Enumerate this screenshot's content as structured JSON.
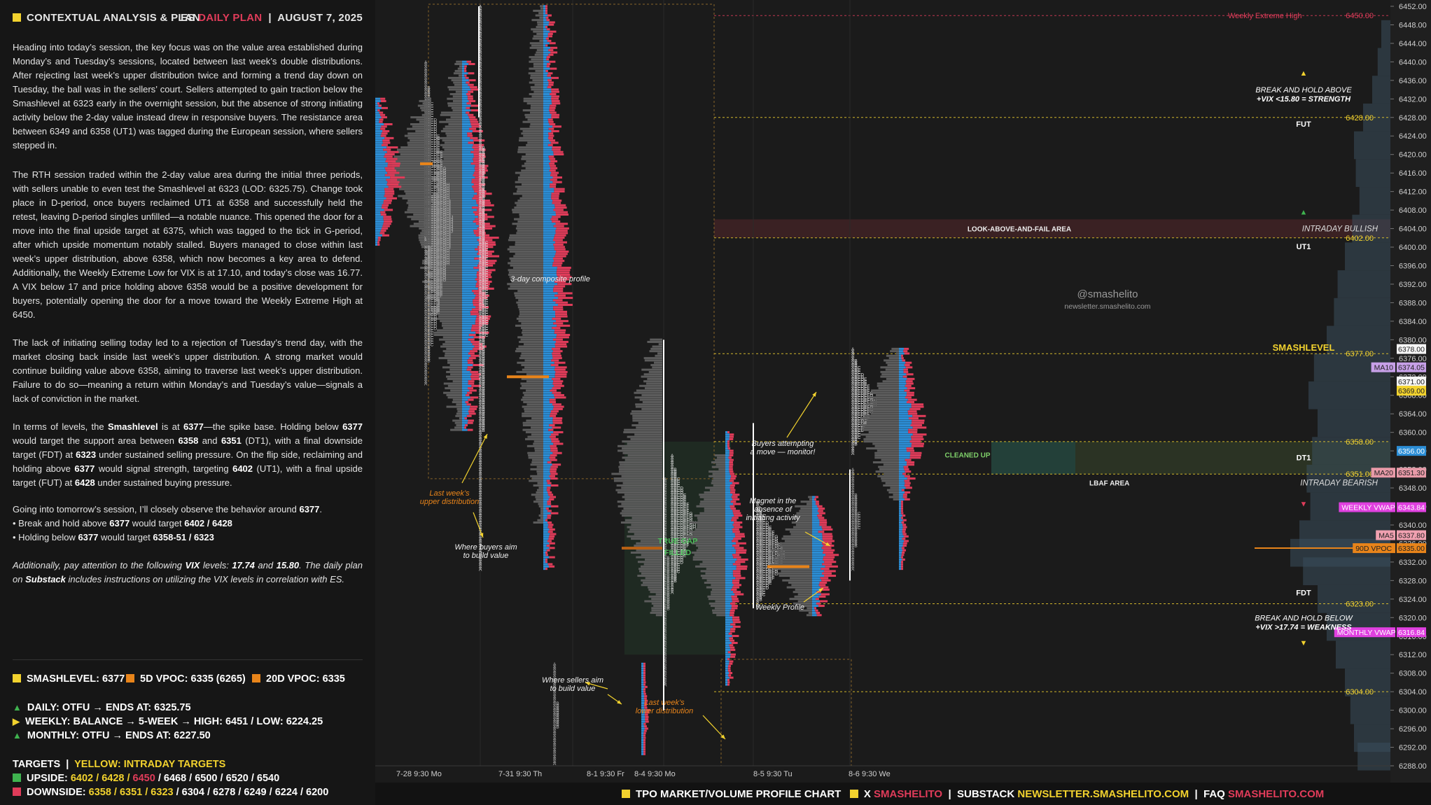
{
  "header": {
    "title": "CONTEXTUAL ANALYSIS & PLAN",
    "instrument": "ES",
    "plan": "DAILY PLAN",
    "date": "AUGUST 7, 2025"
  },
  "paragraphs": [
    "Heading into today’s session, the key focus was on the value area established during Monday’s and Tuesday’s sessions, located between last week’s double distributions. After rejecting last week’s upper distribution twice and forming a trend day down on Tuesday, the ball was in the sellers’ court. Sellers attempted to gain traction below the Smashlevel at 6323 early in the overnight session, but the absence of strong initiating activity below the 2-day value instead drew in responsive buyers. The resistance area between 6349 and 6358 (UT1) was tagged during the European session, where sellers stepped in.",
    "The RTH session traded within the 2-day value area during the initial three periods, with sellers unable to even test the Smashlevel at 6323 (LOD: 6325.75). Change took place in D-period, once buyers reclaimed UT1 at 6358 and successfully held the retest, leaving D-period singles unfilled—a notable nuance. This opened the door for a move into the final upside target at 6375, which was tagged to the tick in G-period, after which upside momentum notably stalled. Buyers managed to close within last week’s upper distribution, above 6358, which now becomes a key area to defend. Additionally, the Weekly Extreme Low for VIX is at 17.10, and today’s close was 16.77. A VIX below 17 and price holding above 6358 would be a positive development for buyers, potentially opening the door for a move toward the Weekly Extreme High at 6450.",
    "The lack of initiating selling today led to a rejection of Tuesday’s trend day, with the market closing back inside last week’s upper distribution. A strong market would continue building value above 6358, aiming to traverse last week’s upper distribution. Failure to do so—meaning a return within Monday’s and Tuesday’s value—signals a lack of conviction in the market.",
    "In terms of levels, the <b>Smashlevel</b> is at <b>6377</b>—the spike base. Holding below <b>6377</b> would target the support area between <b>6358</b> and <b>6351</b> (DT1), with a final downside target (FDT) at <b>6323</b> under sustained selling pressure. On the flip side, reclaiming and holding above <b>6377</b> would signal strength, targeting <b>6402</b> (UT1), with a final upside target (FUT) at <b>6428</b> under sustained buying pressure.",
    "Going into tomorrow’s session, I’ll closely observe the behavior around <b>6377</b>.<br>• Break and hold above <b>6377</b> would target <b>6402 / 6428</b><br>• Holding below <b>6377</b> would target <b>6358-51 / 6323</b>",
    "<i>Additionally, pay attention to the following <b>VIX</b> levels: <b>17.74</b> and <b>15.80</b>. The daily plan on <b>Substack</b> includes instructions on utilizing the VIX levels in correlation with ES.</i>"
  ],
  "levels": {
    "smashlevel": "SMASHLEVEL: 6377",
    "vpoc5d": "5D VPOC: 6335 (6265)",
    "vpoc20d": "20D VPOC: 6335",
    "daily": "DAILY: OTFU → ENDS AT: 6325.75",
    "weekly": "WEEKLY: BALANCE → 5-WEEK → HIGH: 6451 / LOW: 6224.25",
    "monthly": "MONTHLY: OTFU → ENDS AT: 6227.50",
    "targets_label": "TARGETS",
    "targets_yellow": "YELLOW: INTRADAY TARGETS",
    "upside_label": "UPSIDE:",
    "upside_y": "6402 / 6428 / ",
    "upside_r": "6450",
    "upside_rest": " / 6468 / 6500 / 6520 / 6540",
    "downside_label": "DOWNSIDE:",
    "downside_y": "6358 / 6351 / 6323",
    "downside_rest": " / 6304 / 6278 / 6249 / 6224 / 6200"
  },
  "chart_data": {
    "type": "tpo-profile",
    "y_axis": {
      "min": 6288,
      "max": 6452,
      "step": 4
    },
    "price_ticks": [
      6452,
      6448,
      6444,
      6440,
      6436,
      6432,
      6428,
      6424,
      6420,
      6416,
      6412,
      6408,
      6404,
      6400,
      6396,
      6392,
      6388,
      6384,
      6380,
      6376,
      6372,
      6368,
      6364,
      6360,
      6356,
      6352,
      6348,
      6344,
      6340,
      6336,
      6332,
      6328,
      6324,
      6320,
      6316,
      6312,
      6308,
      6304,
      6300,
      6296,
      6292,
      6288
    ],
    "x_labels": [
      "7-28 9:30 Mo",
      "7-31 9:30 Th",
      "8-1 9:30 Fr",
      "8-4 9:30 Mo",
      "8-5 9:30 Tu",
      "8-6 9:30 We"
    ],
    "levels": [
      {
        "label": "Weekly Extreme High",
        "value": 6450,
        "tag": "6450.00",
        "color": "#e03c5a"
      },
      {
        "label": "FUT",
        "value": 6428,
        "tag": "6428.00",
        "color": "#f2d22e"
      },
      {
        "label": "UT1",
        "value": 6402,
        "tag": "6402.00",
        "color": "#f2d22e"
      },
      {
        "label": "SMASHLEVEL",
        "value": 6377,
        "tag": "6377.00",
        "color": "#f2d22e"
      },
      {
        "label": "DT1",
        "value": 6358,
        "tag": "6358.00",
        "color": "#f2d22e"
      },
      {
        "label": "",
        "value": 6351,
        "tag": "6351.00",
        "color": "#f2d22e"
      },
      {
        "label": "FDT",
        "value": 6323,
        "tag": "6323.00",
        "color": "#f2d22e"
      },
      {
        "label": "",
        "value": 6304,
        "tag": "6304.00",
        "color": "#f2d22e"
      }
    ],
    "right_tags": [
      {
        "text": "6378.00",
        "value": 6378
      },
      {
        "text": "6374.05",
        "value": 6374.05,
        "name": "MA10"
      },
      {
        "text": "6371.00",
        "value": 6371
      },
      {
        "text": "6369.00",
        "value": 6369
      },
      {
        "text": "6356.00",
        "value": 6356
      },
      {
        "text": "6351.30",
        "value": 6351.3,
        "name": "MA20"
      },
      {
        "text": "6343.84",
        "value": 6343.84,
        "name": "WEEKLY VWAP"
      },
      {
        "text": "6337.80",
        "value": 6337.8,
        "name": "MA5"
      },
      {
        "text": "6335.00",
        "value": 6335,
        "name": "90D VPOC"
      },
      {
        "text": "6316.84",
        "value": 6316.84,
        "name": "MONTHLY VWAP"
      }
    ],
    "zones": [
      {
        "label": "LOOK-ABOVE-AND-FAIL AREA",
        "from": 6402,
        "to": 6406
      },
      {
        "label": "INTRADAY BULLISH",
        "value": 6404
      },
      {
        "label": "CLEANED UP",
        "from": 6351,
        "to": 6358
      },
      {
        "label": "LBAF AREA",
        "value": 6349
      },
      {
        "label": "INTRADAY BEARISH",
        "value": 6349
      },
      {
        "label": "TRUE GAP FILLED",
        "from": 6312,
        "to": 6358
      }
    ],
    "annotations": [
      "3-day composite profile",
      "Last week's upper distribution",
      "Where buyers aim to build value",
      "Where sellers aim to build value",
      "Last week's lower distribution",
      "Buyers attempting a move — monitor!",
      "Magnet in the absence of initiating activity",
      "Weekly Profile"
    ],
    "break_hold_above": "BREAK AND HOLD ABOVE",
    "break_hold_above_2": "+VIX <15.80 = STRENGTH",
    "break_hold_below": "BREAK AND HOLD BELOW",
    "break_hold_below_2": "+VIX >17.74 = WEAKNESS",
    "watermark": "@smashelito",
    "watermark2": "newsletter.smashelito.com"
  },
  "footer": {
    "a": "TPO MARKET/VOLUME PROFILE CHART",
    "x": "X",
    "xhandle": "SMASHELITO",
    "substack": "SUBSTACK",
    "newsletter": "NEWSLETTER.SMASHELITO.COM",
    "faq": "FAQ",
    "faqhandle": "SMASHELITO.COM"
  },
  "colors": {
    "yellow": "#f2d22e",
    "red": "#e03c5a",
    "blue": "#2c8ed6",
    "orange": "#e8841a",
    "green": "#3fb34f",
    "magenta": "#e040e0"
  }
}
